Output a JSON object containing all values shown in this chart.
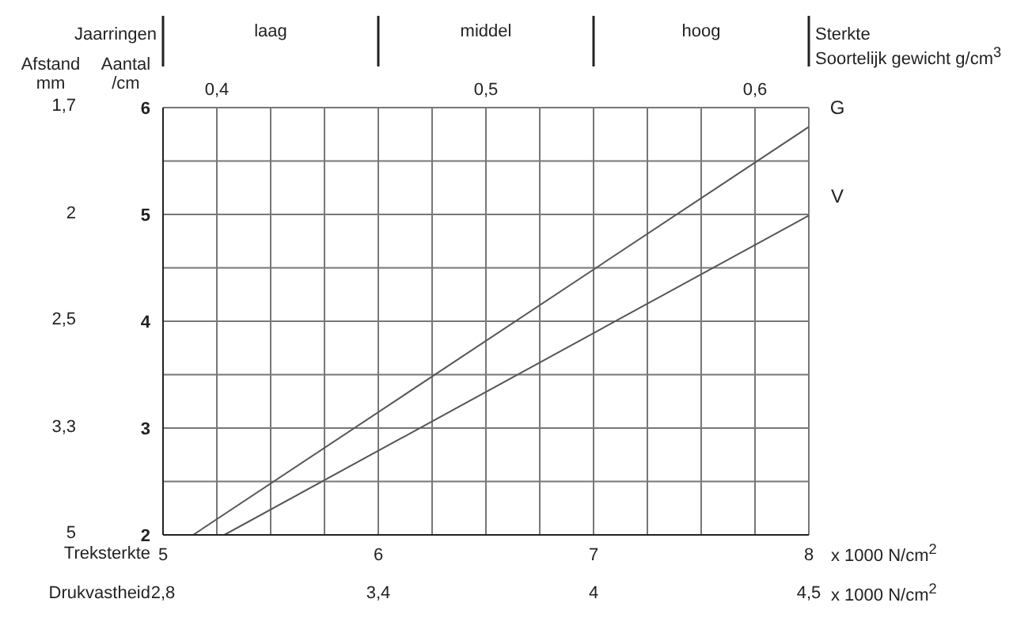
{
  "chart_data": {
    "type": "line",
    "xlabel": "Treksterkte",
    "ylabel": "Aantal /cm",
    "x2label": "Soortelijk gewicht  g/cm$^{3}$",
    "annotations": [
      "Jaarringen",
      "laag",
      "middel",
      "hoog",
      "Sterkte",
      "x  1000 N/cm$^{2}$",
      "x  1000 N/cm$^{2}$",
      "Drukvastheid",
      "2,8",
      "3,4",
      "4",
      "4,5",
      "Afstand mm",
      "1,7",
      "2",
      "2,5",
      "3,3",
      "5"
    ],
    "series": [
      {
        "name": "G",
        "color": "#555555",
        "x": [
          5.14,
          8
        ],
        "values": [
          2,
          5.82
        ]
      },
      {
        "name": "V",
        "color": "#555555",
        "x": [
          5.285,
          8
        ],
        "values": [
          2,
          4.99
        ]
      }
    ],
    "xlim": [
      5,
      8
    ],
    "xticks": [
      5,
      {
        "value": 5.25,
        "label": null
      },
      {
        "value": 5.5,
        "label": null
      },
      {
        "value": 5.75,
        "label": null
      },
      6,
      {
        "value": 6.25,
        "label": null
      },
      {
        "value": 6.5,
        "label": null
      },
      {
        "value": 6.75,
        "label": null
      },
      7,
      {
        "value": 7.25,
        "label": null
      },
      {
        "value": 7.5,
        "label": null
      },
      {
        "value": 7.75,
        "label": null
      },
      8
    ],
    "x2lim": [
      0.38,
      0.62
    ],
    "x2ticks": [
      {
        "value": 0.4,
        "label": "0,4"
      },
      {
        "value": 0.5,
        "label": "0,5"
      },
      {
        "value": 0.6,
        "label": "0,6"
      }
    ],
    "ylim": [
      2,
      6
    ],
    "yticks": [
      2,
      {
        "value": 2.5,
        "label": null
      },
      3,
      {
        "value": 3.5,
        "label": null
      },
      4,
      {
        "value": 4.5,
        "label": null
      },
      5,
      {
        "value": 5.5,
        "label": null
      },
      6
    ],
    "grid": true,
    "legend": false,
    "marker": "none",
    "line_style": "solid"
  }
}
